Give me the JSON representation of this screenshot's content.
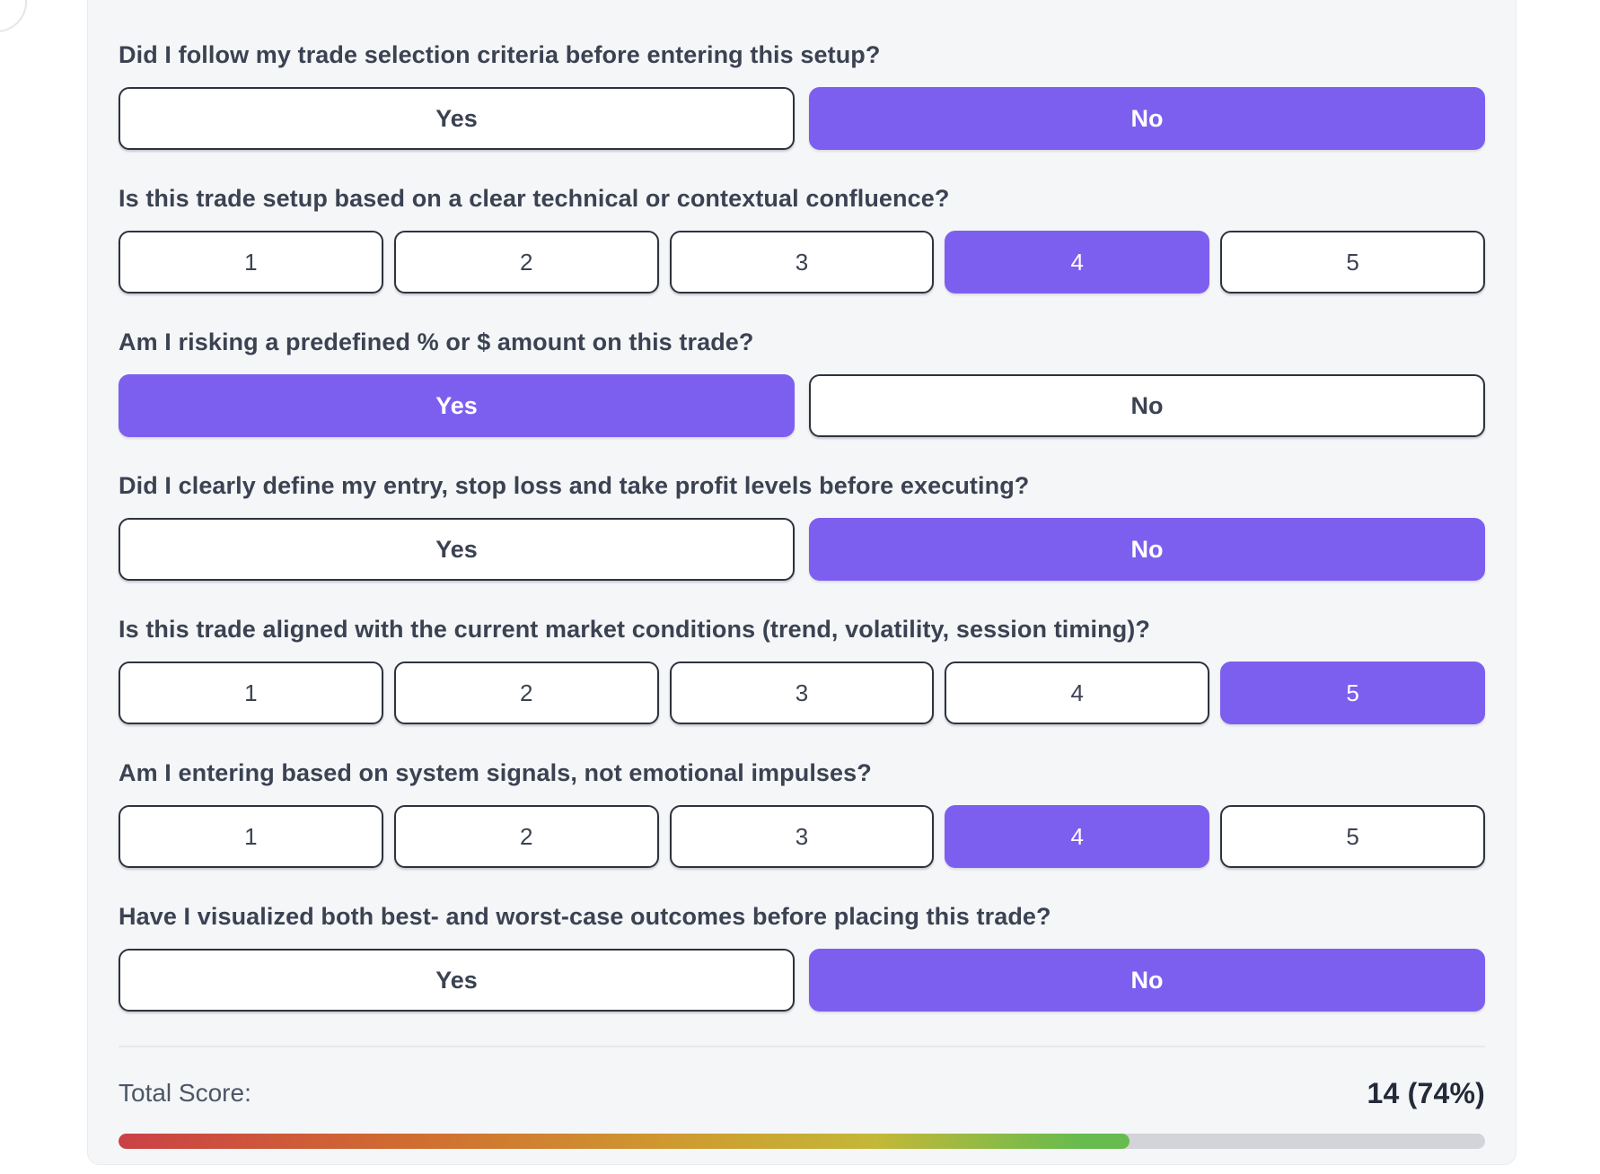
{
  "questions": [
    {
      "label": "Did I follow my trade selection criteria before entering this setup?",
      "type": "yesno",
      "options": [
        "Yes",
        "No"
      ],
      "selected": "No"
    },
    {
      "label": "Is this trade setup based on a clear technical or contextual confluence?",
      "type": "scale",
      "options": [
        "1",
        "2",
        "3",
        "4",
        "5"
      ],
      "selected": "4"
    },
    {
      "label": "Am I risking a predefined % or $ amount on this trade?",
      "type": "yesno",
      "options": [
        "Yes",
        "No"
      ],
      "selected": "Yes"
    },
    {
      "label": "Did I clearly define my entry, stop loss and take profit levels before executing?",
      "type": "yesno",
      "options": [
        "Yes",
        "No"
      ],
      "selected": "No"
    },
    {
      "label": "Is this trade aligned with the current market conditions (trend, volatility, session timing)?",
      "type": "scale",
      "options": [
        "1",
        "2",
        "3",
        "4",
        "5"
      ],
      "selected": "5"
    },
    {
      "label": "Am I entering based on system signals, not emotional impulses?",
      "type": "scale",
      "options": [
        "1",
        "2",
        "3",
        "4",
        "5"
      ],
      "selected": "4"
    },
    {
      "label": "Have I visualized both best- and worst-case outcomes before placing this trade?",
      "type": "yesno",
      "options": [
        "Yes",
        "No"
      ],
      "selected": "No"
    }
  ],
  "summary": {
    "total_label": "Total Score:",
    "score_text": "14 (74%)",
    "progress_percent": 74
  },
  "colors": {
    "accent": "#7d5ff0",
    "card_bg": "#f5f6f8",
    "track_gray": "#d2d4da",
    "bar_gradient": [
      "#cb4146",
      "#d06b31",
      "#cf9a30",
      "#c3b838",
      "#68bb4e"
    ]
  }
}
